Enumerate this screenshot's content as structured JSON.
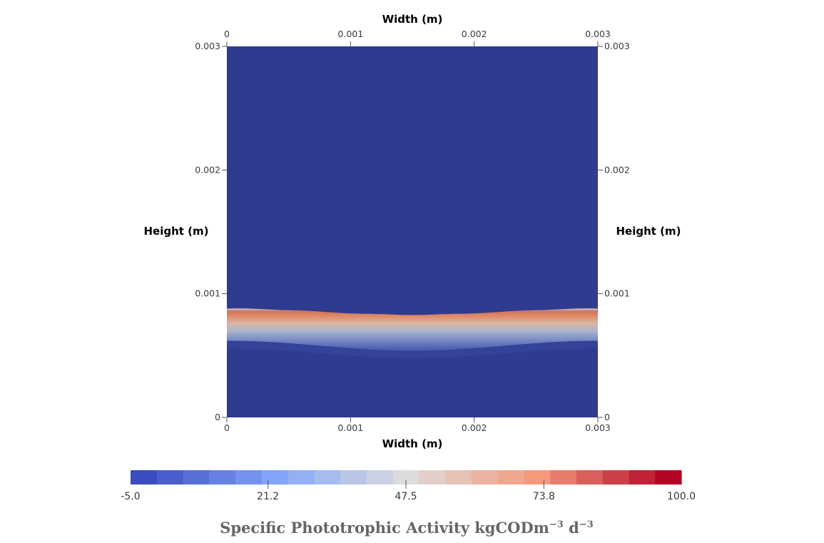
{
  "chart_data": {
    "type": "heatmap",
    "axes": {
      "top_title": "Width (m)",
      "bottom_title": "Width (m)",
      "left_title": "Height (m)",
      "right_title": "Height (m)",
      "xlim": [
        0,
        0.003
      ],
      "ylim": [
        0,
        0.003
      ],
      "x_ticks": [
        "0",
        "0.001",
        "0.002",
        "0.003"
      ],
      "y_ticks": [
        "0",
        "0.001",
        "0.002",
        "0.003"
      ],
      "grid": false
    },
    "field": {
      "background_value": -5.0,
      "band": {
        "peak_value": 100,
        "peak_height_edges_m": 0.00088,
        "peak_height_center_m": 0.00083,
        "bottom_height_edges_m": 0.00056,
        "bottom_height_center_m": 0.00048
      }
    },
    "colorbar": {
      "title": "Specific Phototrophic Activity kgCODm",
      "title_sup1": "−3",
      "title_mid": " d",
      "title_sup2": "−3",
      "min": -5.0,
      "max": 100.0,
      "tick_labels": [
        "-5.0",
        "21.2",
        "47.5",
        "73.8",
        "100.0"
      ],
      "tick_values": [
        -5.0,
        21.2,
        47.5,
        73.8,
        100.0
      ],
      "num_bins": 21,
      "colormap": "coolwarm",
      "low_color": "#3b4cc0",
      "mid_color": "#dddcdc",
      "high_color": "#b40426",
      "background_color": "#2f3b8f"
    }
  }
}
